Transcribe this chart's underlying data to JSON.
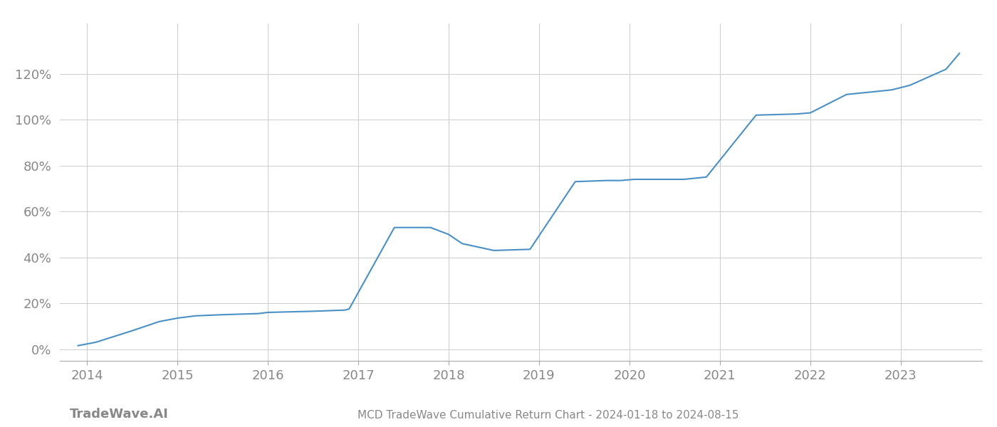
{
  "title": "MCD TradeWave Cumulative Return Chart - 2024-01-18 to 2024-08-15",
  "watermark": "TradeWave.AI",
  "line_color": "#4a90c4",
  "line_width": 1.5,
  "background_color": "#ffffff",
  "grid_color": "#cccccc",
  "x_years": [
    2014,
    2015,
    2016,
    2017,
    2018,
    2019,
    2020,
    2021,
    2022,
    2023
  ],
  "x_data": [
    2013.9,
    2014.1,
    2014.5,
    2014.8,
    2015.0,
    2015.2,
    2015.5,
    2015.9,
    2016.0,
    2016.2,
    2016.5,
    2016.85,
    2016.9,
    2017.4,
    2017.8,
    2018.0,
    2018.15,
    2018.5,
    2018.9,
    2019.4,
    2019.75,
    2019.9,
    2020.05,
    2020.6,
    2020.85,
    2021.4,
    2021.85,
    2022.0,
    2022.4,
    2022.9,
    2023.1,
    2023.5,
    2023.65
  ],
  "y_data": [
    1.5,
    3.0,
    8.0,
    12.0,
    13.5,
    14.5,
    15.0,
    15.5,
    16.0,
    16.2,
    16.5,
    17.0,
    17.5,
    53.0,
    53.0,
    50.0,
    46.0,
    43.0,
    43.5,
    73.0,
    73.5,
    73.5,
    74.0,
    74.0,
    75.0,
    102.0,
    102.5,
    103.0,
    111.0,
    113.0,
    115.0,
    122.0,
    129.0
  ],
  "yticks": [
    0,
    20,
    40,
    60,
    80,
    100,
    120
  ],
  "ylim": [
    -5,
    142
  ],
  "xlim": [
    2013.7,
    2023.9
  ],
  "title_fontsize": 11,
  "tick_fontsize": 13,
  "watermark_fontsize": 13,
  "title_color": "#888888",
  "watermark_color": "#888888",
  "tick_color": "#888888"
}
